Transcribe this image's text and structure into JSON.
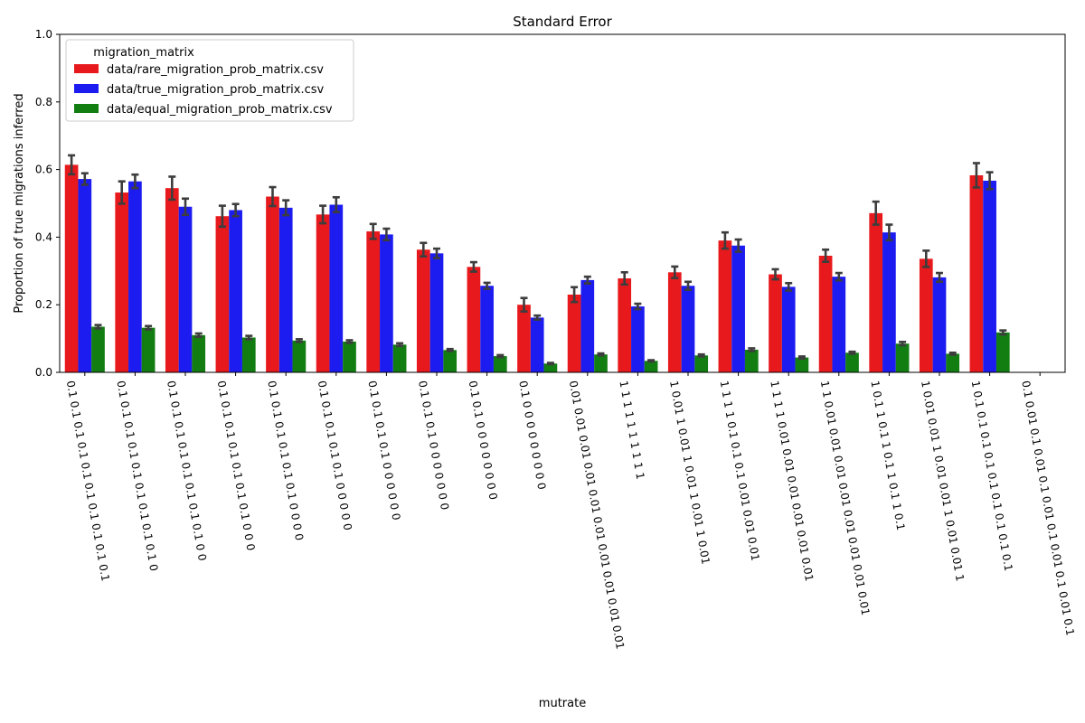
{
  "chart_data": {
    "type": "bar",
    "title": "Standard Error",
    "xlabel": "mutrate",
    "ylabel": "Proportion of true migrations inferred",
    "ylim": [
      0,
      1
    ],
    "yticks": [
      "0.0",
      "0.2",
      "0.4",
      "0.6",
      "0.8",
      "1.0"
    ],
    "grid": false,
    "legend": {
      "title": "migration_matrix",
      "position": "top-left"
    },
    "categories": [
      "0.1 0.1 0.1 0.1 0.1 0.1 0.1 0.1 0.1 0.1",
      "0.1 0.1 0.1 0.1 0.1 0.1 0.1 0.1 0.1 0",
      "0.1 0.1 0.1 0.1 0.1 0.1 0.1 0.1 0 0",
      "0.1 0.1 0.1 0.1 0.1 0.1 0.1 0 0 0",
      "0.1 0.1 0.1 0.1 0.1 0.1 0 0 0 0",
      "0.1 0.1 0.1 0.1 0.1 0 0 0 0 0",
      "0.1 0.1 0.1 0.1 0 0 0 0 0 0",
      "0.1 0.1 0.1 0 0 0 0 0 0 0",
      "0.1 0.1 0 0 0 0 0 0 0 0",
      "0.1 0 0 0 0 0 0 0 0 0",
      "0.01 0.01 0.01 0.01 0.01 0.01 0.01 0.01 0.01 0.01",
      "1 1 1 1 1 1 1 1 1 1",
      "1 0.01 1 0.01 1 0.01 1 0.01 1 0.01",
      "1 1 1 1 0.1 0.1 0.1 0.01 0.01 0.01",
      "1 1 1 1 0.01 0.01 0.01 0.01 0.01 0.01",
      "1 1 0.01 0.01 0.01 0.01 0.01 0.01 0.01 0.01",
      "1 0.1 1 0.1 1 0.1 1 0.1 1 0.1",
      "1 0.01 0.01 1 0.01 0.01 1 0.01 0.01 1",
      "1 0.1 0.1 0.1 0.1 0.1 0.1 0.1 0.1 0.1",
      "0.1 0.01 0.1 0.01 0.1 0.01 0.1 0.01 0.1 0.01 0.1"
    ],
    "series": [
      {
        "name": "data/rare_migration_prob_matrix.csv",
        "color": "#e8191c",
        "values": [
          0.614,
          0.532,
          0.545,
          0.462,
          0.52,
          0.467,
          0.417,
          0.363,
          0.312,
          0.2,
          0.23,
          0.278,
          0.296,
          0.39,
          0.29,
          0.345,
          0.471,
          0.336,
          0.583,
          null
        ],
        "err": [
          0.028,
          0.033,
          0.034,
          0.031,
          0.028,
          0.026,
          0.022,
          0.02,
          0.014,
          0.02,
          0.022,
          0.018,
          0.017,
          0.024,
          0.015,
          0.018,
          0.034,
          0.024,
          0.036,
          null
        ]
      },
      {
        "name": "data/true_migration_prob_matrix.csv",
        "color": "#1c1cf0",
        "values": [
          0.572,
          0.565,
          0.49,
          0.48,
          0.487,
          0.496,
          0.408,
          0.352,
          0.256,
          0.162,
          0.273,
          0.195,
          0.256,
          0.375,
          0.253,
          0.283,
          0.414,
          0.281,
          0.567,
          null
        ],
        "err": [
          0.017,
          0.02,
          0.024,
          0.018,
          0.022,
          0.022,
          0.017,
          0.014,
          0.009,
          0.006,
          0.01,
          0.008,
          0.012,
          0.018,
          0.011,
          0.011,
          0.023,
          0.013,
          0.025,
          null
        ]
      },
      {
        "name": "data/equal_migration_prob_matrix.csv",
        "color": "#127e12",
        "values": [
          0.135,
          0.132,
          0.11,
          0.103,
          0.094,
          0.091,
          0.082,
          0.066,
          0.048,
          0.026,
          0.053,
          0.034,
          0.05,
          0.067,
          0.044,
          0.058,
          0.085,
          0.055,
          0.118,
          null
        ],
        "err": [
          0.005,
          0.005,
          0.005,
          0.005,
          0.004,
          0.004,
          0.004,
          0.003,
          0.003,
          0.002,
          0.003,
          0.002,
          0.003,
          0.004,
          0.003,
          0.003,
          0.005,
          0.003,
          0.006,
          null
        ]
      }
    ]
  }
}
